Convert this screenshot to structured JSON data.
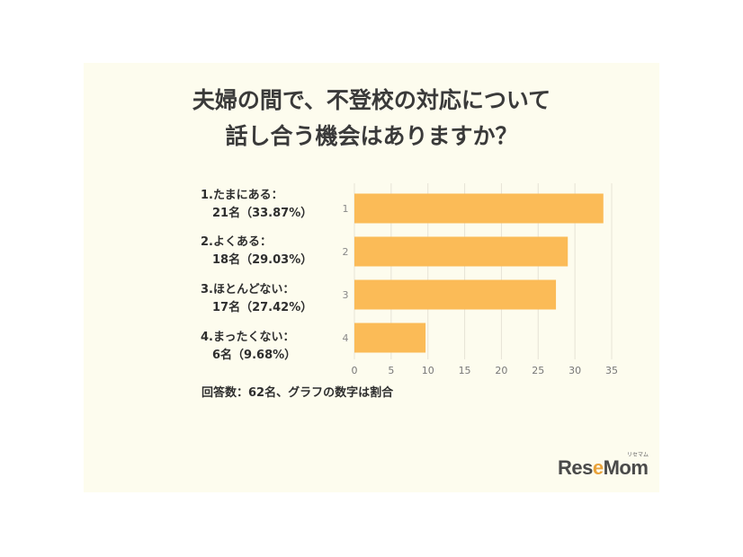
{
  "title": {
    "line1": "夫婦の間で、不登校の対応について",
    "line2": "話し合う機会はありますか？"
  },
  "categories": [
    {
      "line1": "1.たまにある：",
      "line2": "21名（33.87%）"
    },
    {
      "line1": "2.よくある：",
      "line2": "18名（29.03%）"
    },
    {
      "line1": "3.ほとんどない：",
      "line2": "17名（27.42%）"
    },
    {
      "line1": "4.まったくない：",
      "line2": "6名（9.68%）"
    }
  ],
  "chart_data": {
    "type": "bar",
    "orientation": "horizontal",
    "categories": [
      "1",
      "2",
      "3",
      "4"
    ],
    "values": [
      33.87,
      29.03,
      27.42,
      9.68
    ],
    "xlim": [
      0,
      35
    ],
    "xticks": [
      "0",
      "5",
      "10",
      "15",
      "20",
      "25",
      "30",
      "35"
    ],
    "grid": true,
    "bar_color": "#fbbb57"
  },
  "note": "回答数：62名、グラフの数字は割合",
  "logo": {
    "text_a": "Res",
    "text_b": "e",
    "text_c": "Mom",
    "small": "リセマム"
  }
}
